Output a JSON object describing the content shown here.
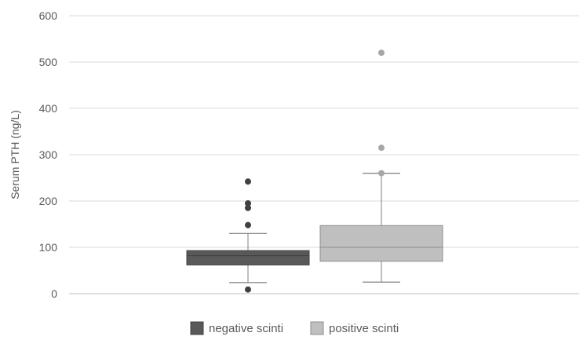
{
  "chart_data": {
    "type": "boxplot",
    "ylabel": "Serum PTH (ng/L)",
    "ylim": [
      0,
      600
    ],
    "yticks": [
      0,
      100,
      200,
      300,
      400,
      500,
      600
    ],
    "grid": true,
    "legend_position": "bottom",
    "series": [
      {
        "name": "negative scinti",
        "color": "#595959",
        "whisker_low": 24,
        "q1": 62,
        "median": 82,
        "q3": 93,
        "whisker_high": 130,
        "outliers": [
          9,
          148,
          185,
          195,
          242
        ]
      },
      {
        "name": "positive scinti",
        "color": "#bfbfbf",
        "whisker_low": 25,
        "q1": 70,
        "median": 100,
        "q3": 147,
        "whisker_high": 260,
        "outliers": [
          260,
          315,
          520
        ]
      }
    ]
  }
}
